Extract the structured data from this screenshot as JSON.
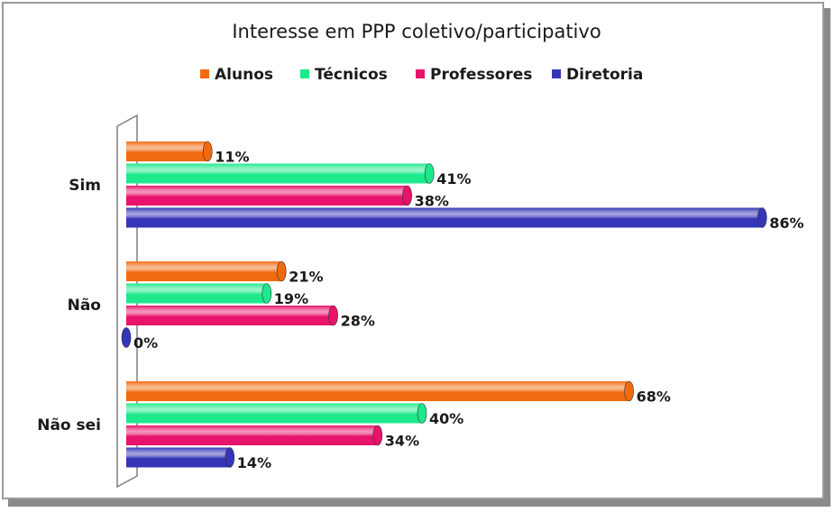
{
  "chart_data": {
    "type": "bar",
    "orientation": "horizontal",
    "title": "Interesse em PPP coletivo/participativo",
    "categories": [
      "Sim",
      "Não",
      "Não sei"
    ],
    "series": [
      {
        "name": "Alunos",
        "color": "#f26a0f",
        "values": [
          11,
          21,
          68
        ],
        "value_labels": [
          "11%",
          "21%",
          "68%"
        ]
      },
      {
        "name": "Técnicos",
        "color": "#1ee88c",
        "values": [
          41,
          19,
          40
        ],
        "value_labels": [
          "41%",
          "19%",
          "40%"
        ]
      },
      {
        "name": "Professores",
        "color": "#e8136a",
        "values": [
          38,
          28,
          34
        ],
        "value_labels": [
          "38%",
          "28%",
          "34%"
        ]
      },
      {
        "name": "Diretoria",
        "color": "#3535b8",
        "values": [
          86,
          0,
          14
        ],
        "value_labels": [
          "86%",
          "0%",
          "14%"
        ]
      }
    ],
    "xlim": [
      0,
      90
    ],
    "legend": "top"
  }
}
